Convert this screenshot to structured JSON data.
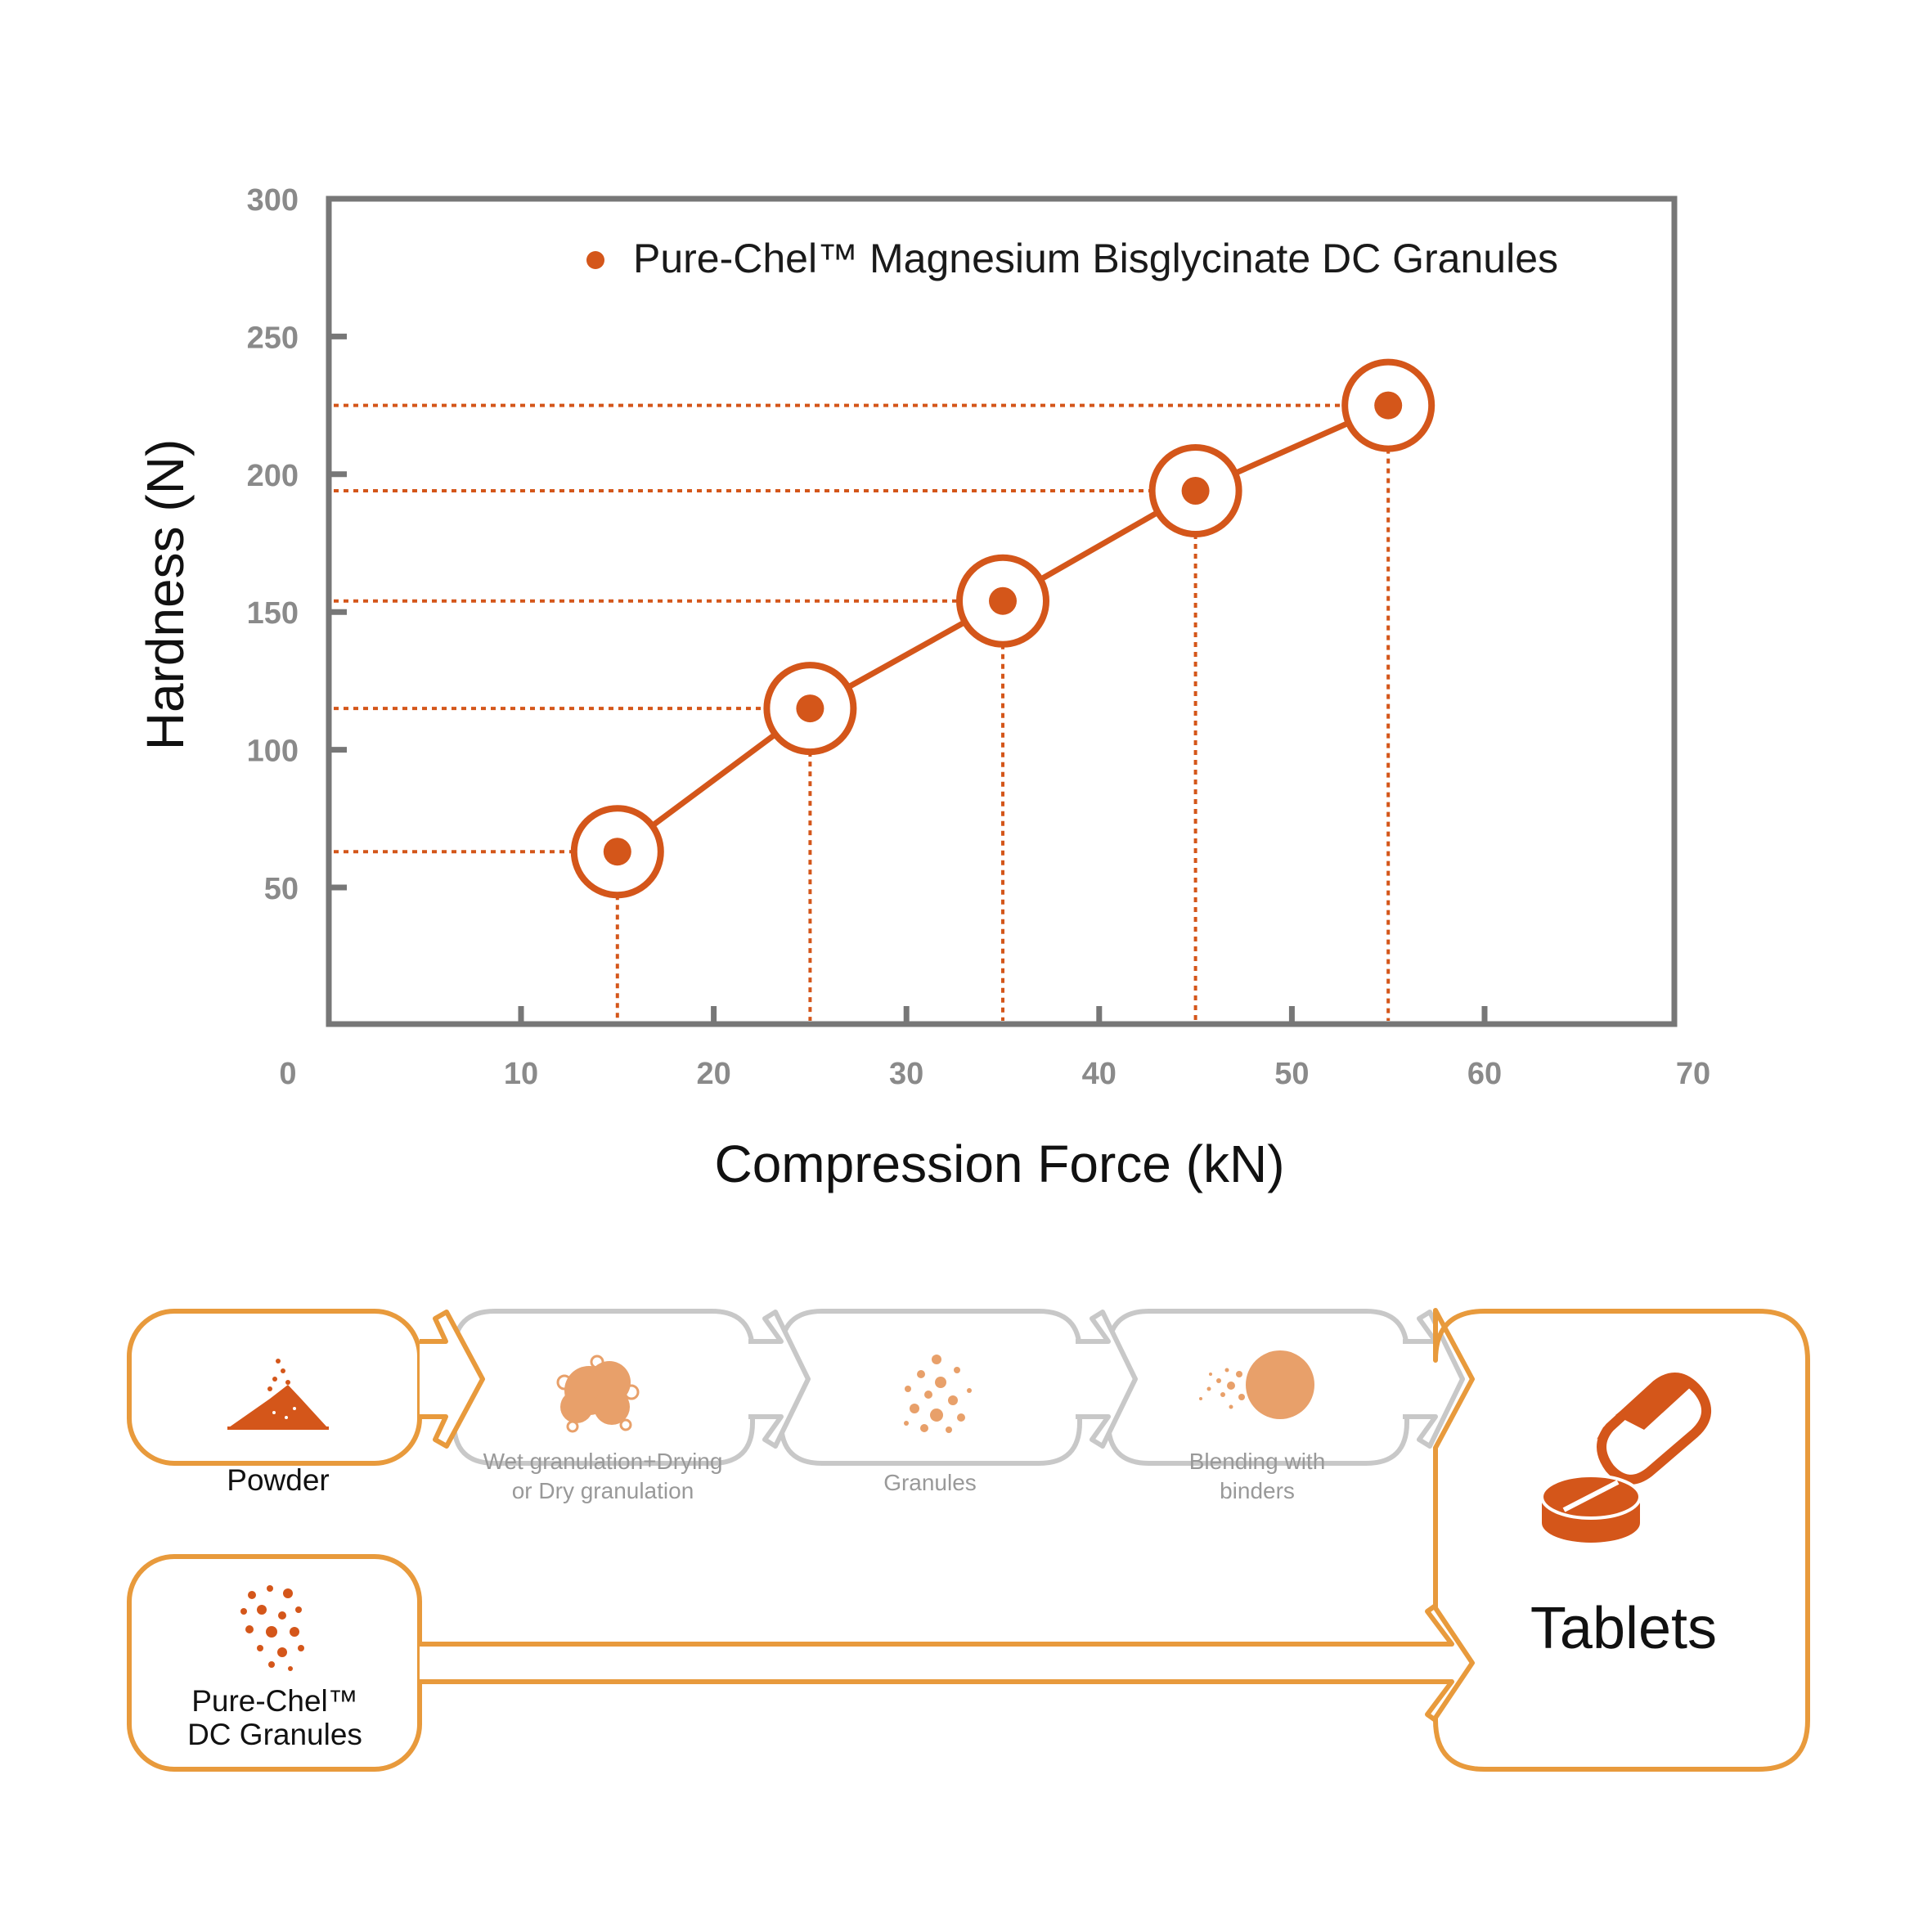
{
  "chart_data": {
    "type": "line",
    "xlabel": "Compression Force (kN)",
    "ylabel": "Hardness (N)",
    "xlim": [
      0,
      70
    ],
    "ylim": [
      0,
      300
    ],
    "x_ticks": [
      "0",
      "10",
      "20",
      "30",
      "40",
      "50",
      "60",
      "70"
    ],
    "x_tick_values": [
      0,
      10,
      20,
      30,
      40,
      50,
      60,
      70
    ],
    "y_ticks": [
      "50",
      "100",
      "150",
      "200",
      "250",
      "300"
    ],
    "y_tick_values": [
      50,
      100,
      150,
      200,
      250,
      300
    ],
    "legend_position": "top-right",
    "grid": false,
    "series": [
      {
        "name": "Pure-Chel™ Magnesium Bisglycinate DC Granules",
        "x": [
          15,
          25,
          35,
          45,
          55
        ],
        "y": [
          63,
          115,
          154,
          194,
          225
        ],
        "color": "#d4561a"
      }
    ]
  },
  "flow": {
    "powder_label": "Powder",
    "wet_line1": "Wet granulation+Drying",
    "wet_line2": "or Dry granulation",
    "granules_label": "Granules",
    "blend_line1": "Blending with",
    "blend_line2": "binders",
    "dc_line1": "Pure-Chel™",
    "dc_line2": "DC Granules",
    "tablets_label": "Tablets",
    "colors": {
      "orange": "#e89a3c",
      "gray": "#c8c8c8",
      "icon_dark": "#d4561a",
      "icon_light": "#e8a06a"
    }
  }
}
